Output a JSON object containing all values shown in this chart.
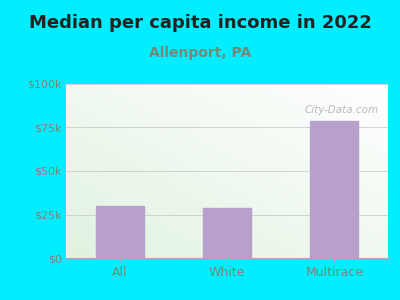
{
  "title": "Median per capita income in 2022",
  "subtitle": "Allenport, PA",
  "categories": [
    "All",
    "White",
    "Multirace"
  ],
  "values": [
    30000,
    29000,
    79000
  ],
  "bar_color": "#b8a0cc",
  "ylim": [
    0,
    100000
  ],
  "yticks": [
    0,
    25000,
    50000,
    75000,
    100000
  ],
  "ytick_labels": [
    "$0",
    "$25k",
    "$50k",
    "$75k",
    "$100k"
  ],
  "bg_outer": "#00eeff",
  "bg_inner_topleft": "#ddf0dd",
  "bg_inner_bottomright": "#f8f8f8",
  "title_fontsize": 13,
  "subtitle_fontsize": 10,
  "watermark": "City-Data.com",
  "title_color": "#222222",
  "subtitle_color": "#778877",
  "axis_color": "#556655",
  "tick_color": "#778877",
  "grid_color": "#cccccc"
}
